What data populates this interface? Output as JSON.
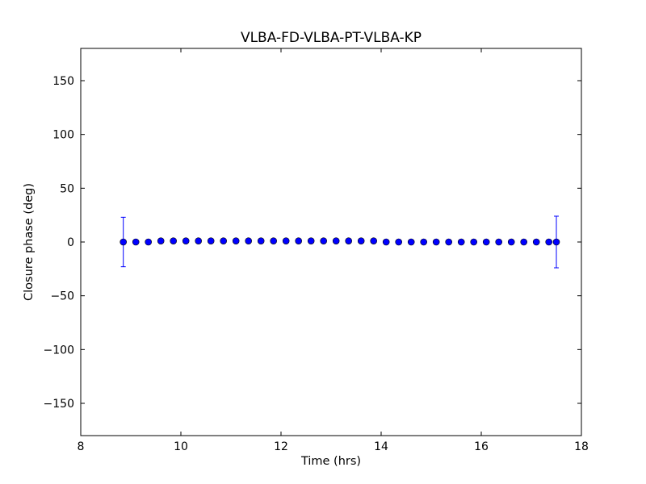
{
  "chart_data": {
    "type": "scatter",
    "title": "VLBA-FD-VLBA-PT-VLBA-KP",
    "xlabel": "Time (hrs)",
    "ylabel": "Closure phase (deg)",
    "xlim": [
      8,
      18
    ],
    "ylim": [
      -180,
      180
    ],
    "xticks": [
      8,
      10,
      12,
      14,
      16,
      18
    ],
    "xtick_labels": [
      "8",
      "10",
      "12",
      "14",
      "16",
      "18"
    ],
    "yticks": [
      -150,
      -100,
      -50,
      0,
      50,
      100,
      150
    ],
    "ytick_labels": [
      "−150",
      "−100",
      "−50",
      "0",
      "50",
      "100",
      "150"
    ],
    "grid": false,
    "colors": {
      "marker": "#0000ff",
      "marker_edge": "#000000",
      "errorbar": "#0000ff"
    },
    "series": [
      {
        "x": [
          8.85,
          9.1,
          9.35,
          9.6,
          9.85,
          10.1,
          10.35,
          10.6,
          10.85,
          11.1,
          11.35,
          11.6,
          11.85,
          12.1,
          12.35,
          12.6,
          12.85,
          13.1,
          13.35,
          13.6,
          13.85,
          14.1,
          14.35,
          14.6,
          14.85,
          15.1,
          15.35,
          15.6,
          15.85,
          16.1,
          16.35,
          16.6,
          16.85,
          17.1,
          17.35,
          17.5
        ],
        "y": [
          0,
          0,
          0,
          1,
          1,
          1,
          1,
          1,
          1,
          1,
          1,
          1,
          1,
          1,
          1,
          1,
          1,
          1,
          1,
          1,
          1,
          0,
          0,
          0,
          0,
          0,
          0,
          0,
          0,
          0,
          0,
          0,
          0,
          0,
          0,
          0
        ],
        "errorbars": [
          {
            "x": 8.85,
            "y": 0,
            "err": 23
          },
          {
            "x": 17.5,
            "y": 0,
            "err": 24
          }
        ]
      }
    ]
  }
}
